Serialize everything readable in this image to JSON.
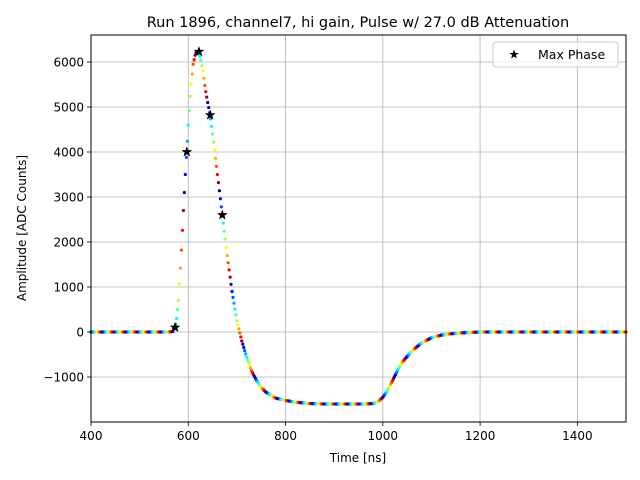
{
  "chart_data": {
    "type": "scatter",
    "title": "Run 1896, channel7, hi gain, Pulse w/ 27.0 dB Attenuation",
    "xlabel": "Time [ns]",
    "ylabel": "Amplitude [ADC Counts]",
    "xlim": [
      400,
      1500
    ],
    "ylim": [
      -2000,
      6600
    ],
    "xticks": [
      400,
      600,
      800,
      1000,
      1200,
      1400
    ],
    "yticks": [
      -1000,
      0,
      1000,
      2000,
      3000,
      4000,
      5000,
      6000
    ],
    "xtick_labels": [
      "400",
      "600",
      "800",
      "1000",
      "1200",
      "1400"
    ],
    "ytick_labels": [
      "−1000",
      "0",
      "1000",
      "2000",
      "3000",
      "4000",
      "5000",
      "6000"
    ],
    "grid": true,
    "legend": {
      "position": "top-right",
      "entries": [
        "Max Phase"
      ]
    },
    "series": [
      {
        "name": "Max Phase",
        "marker": "star",
        "color": "#000000",
        "x": [
          573,
          597,
          622,
          645,
          670
        ],
        "y": [
          100,
          4000,
          6230,
          4820,
          2600
        ]
      }
    ],
    "pulse_trace": {
      "colormap": "jet",
      "x": [
        400,
        560,
        568,
        575,
        580,
        585,
        590,
        595,
        600,
        605,
        610,
        615,
        620,
        625,
        630,
        635,
        640,
        645,
        650,
        660,
        670,
        680,
        690,
        700,
        710,
        720,
        730,
        740,
        750,
        760,
        780,
        800,
        820,
        850,
        880,
        900,
        930,
        960,
        980,
        990,
        1000,
        1010,
        1020,
        1030,
        1040,
        1060,
        1080,
        1100,
        1120,
        1140,
        1160,
        1180,
        1200,
        1300,
        1400,
        1500
      ],
      "y": [
        0,
        0,
        10,
        200,
        700,
        1600,
        2700,
        3700,
        4600,
        5400,
        5950,
        6200,
        6230,
        6100,
        5800,
        5400,
        5100,
        4820,
        4400,
        3500,
        2600,
        1700,
        900,
        250,
        -200,
        -560,
        -860,
        -1070,
        -1230,
        -1340,
        -1470,
        -1520,
        -1560,
        -1590,
        -1600,
        -1600,
        -1600,
        -1600,
        -1590,
        -1550,
        -1450,
        -1290,
        -1080,
        -860,
        -670,
        -420,
        -240,
        -130,
        -70,
        -40,
        -20,
        -10,
        0,
        0,
        0,
        0
      ]
    }
  }
}
